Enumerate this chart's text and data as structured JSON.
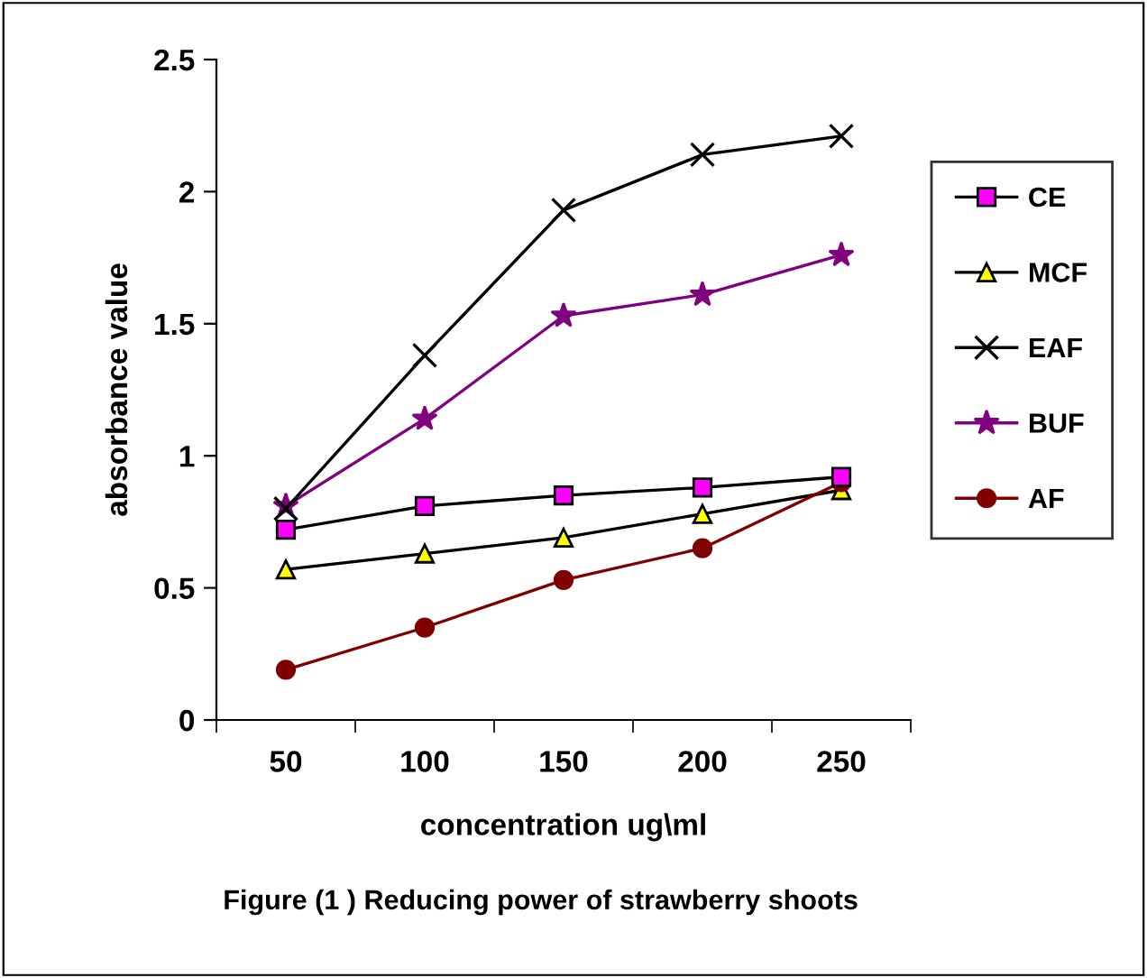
{
  "chart_data": {
    "type": "line",
    "xlabel": "concentration ug\\ml",
    "ylabel": "absorbance value",
    "categories": [
      "50",
      "100",
      "150",
      "200",
      "250"
    ],
    "ylim": [
      0,
      2.5
    ],
    "yticks": [
      0,
      0.5,
      1,
      1.5,
      2,
      2.5
    ],
    "grid": false,
    "legend": "right",
    "series": [
      {
        "name": "CE",
        "color": "#000000",
        "marker": "square",
        "values": [
          0.72,
          0.81,
          0.85,
          0.88,
          0.92
        ]
      },
      {
        "name": "MCF",
        "color": "#000000",
        "marker": "triangle",
        "values": [
          0.57,
          0.63,
          0.69,
          0.78,
          0.87
        ]
      },
      {
        "name": "EAF",
        "color": "#000000",
        "marker": "cross",
        "values": [
          0.8,
          1.38,
          1.93,
          2.14,
          2.21
        ]
      },
      {
        "name": "BUF",
        "color": "#800080",
        "marker": "star",
        "values": [
          0.81,
          1.14,
          1.53,
          1.61,
          1.76
        ]
      },
      {
        "name": "AF",
        "color": "#800000",
        "marker": "circle",
        "values": [
          0.19,
          0.35,
          0.53,
          0.65,
          0.9
        ]
      }
    ],
    "annotations": [
      "Figure (1 ) Reducing power of strawberry shoots"
    ]
  }
}
